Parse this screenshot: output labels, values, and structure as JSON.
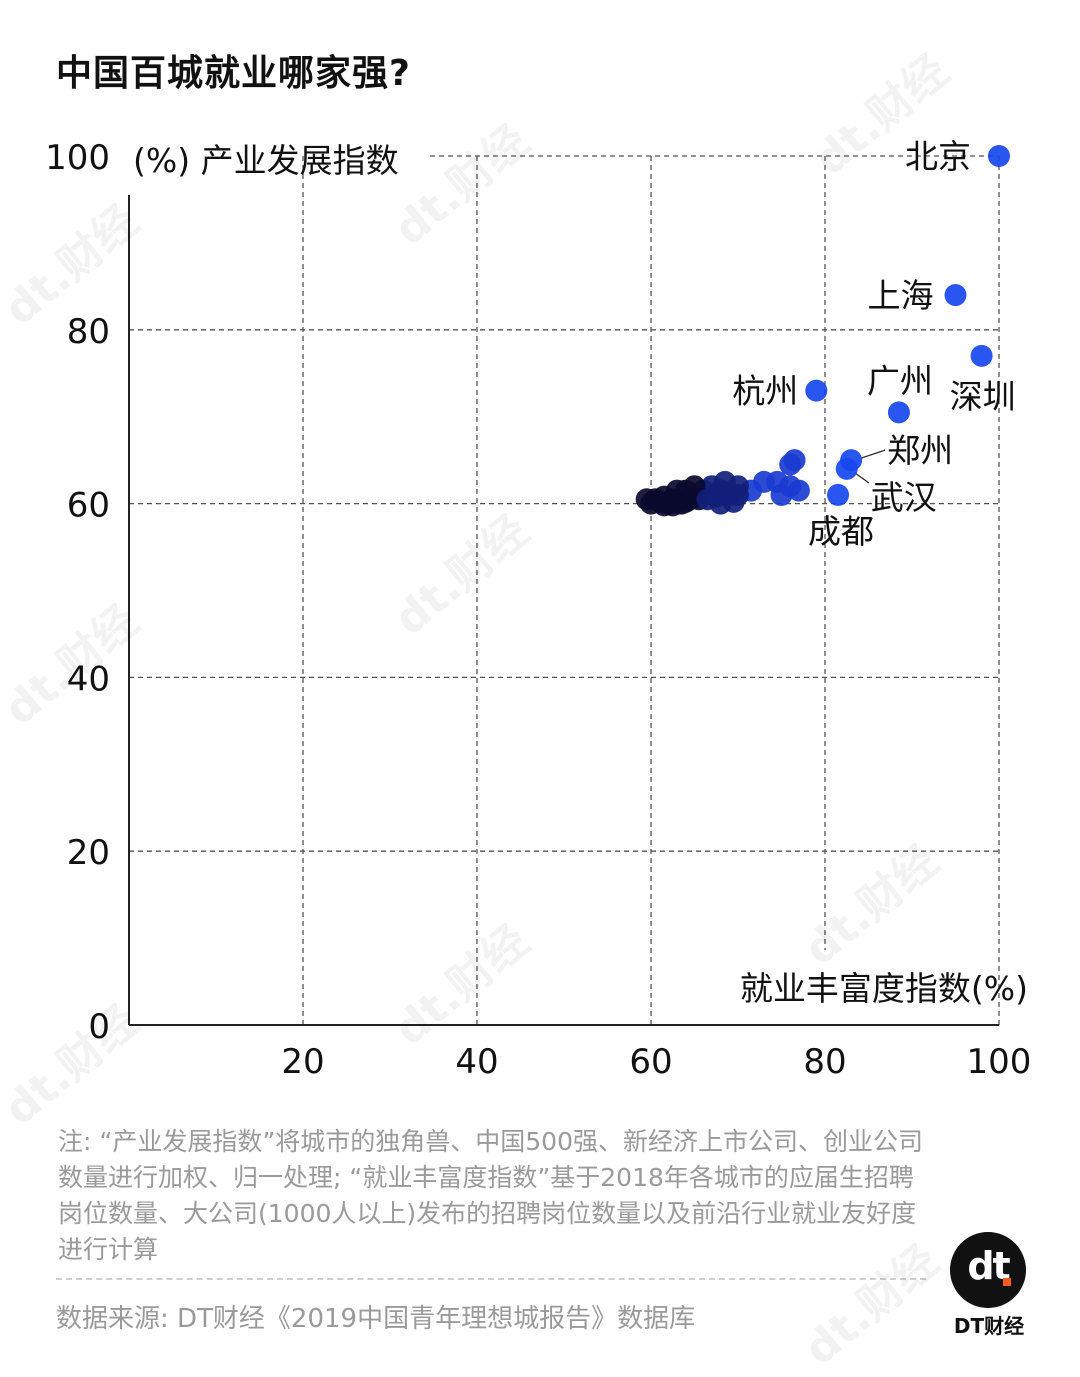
{
  "title": "中国百城就业哪家强?",
  "chart_data": {
    "type": "scatter",
    "title": "中国百城就业哪家强?",
    "xlabel": "就业丰富度指数",
    "xunit": "(%)",
    "ylabel": "产业发展指数",
    "yunit": "(%)",
    "xlim": [
      0,
      100
    ],
    "ylim": [
      0,
      100
    ],
    "xticks": [
      20,
      40,
      60,
      80,
      100
    ],
    "yticks": [
      0,
      20,
      40,
      60,
      80,
      100
    ],
    "grid": true,
    "color": "#1746f0",
    "labeled_points": [
      {
        "name": "北京",
        "x": 100,
        "y": 100
      },
      {
        "name": "上海",
        "x": 95,
        "y": 84
      },
      {
        "name": "深圳",
        "x": 98,
        "y": 77
      },
      {
        "name": "广州",
        "x": 88.5,
        "y": 70.5
      },
      {
        "name": "杭州",
        "x": 79,
        "y": 73
      },
      {
        "name": "郑州",
        "x": 83,
        "y": 65
      },
      {
        "name": "武汉",
        "x": 82.5,
        "y": 64
      },
      {
        "name": "成都",
        "x": 81.5,
        "y": 61
      }
    ],
    "points": [
      {
        "x": 76.5,
        "y": 65
      },
      {
        "x": 76,
        "y": 64.5
      },
      {
        "x": 76,
        "y": 62
      },
      {
        "x": 77,
        "y": 61.5
      },
      {
        "x": 74.5,
        "y": 62.5
      },
      {
        "x": 73,
        "y": 62.5
      },
      {
        "x": 75,
        "y": 61
      },
      {
        "x": 71.5,
        "y": 61.5
      },
      {
        "x": 70,
        "y": 62
      },
      {
        "x": 68.5,
        "y": 62.5
      },
      {
        "x": 69,
        "y": 61
      },
      {
        "x": 68,
        "y": 61.5
      },
      {
        "x": 68,
        "y": 60
      },
      {
        "x": 67,
        "y": 62
      },
      {
        "x": 66,
        "y": 61.5
      },
      {
        "x": 65,
        "y": 62
      },
      {
        "x": 65.5,
        "y": 60.5
      },
      {
        "x": 64,
        "y": 61.5
      },
      {
        "x": 64.5,
        "y": 60.5
      },
      {
        "x": 63.5,
        "y": 60
      },
      {
        "x": 63,
        "y": 61.5
      },
      {
        "x": 62.5,
        "y": 60.5
      },
      {
        "x": 62,
        "y": 60
      },
      {
        "x": 61.5,
        "y": 60.8
      },
      {
        "x": 61,
        "y": 60.2
      },
      {
        "x": 60.5,
        "y": 60.5
      },
      {
        "x": 60,
        "y": 60
      },
      {
        "x": 59.5,
        "y": 60.5
      },
      {
        "x": 61.5,
        "y": 59.8
      },
      {
        "x": 62.5,
        "y": 59.8
      },
      {
        "x": 63,
        "y": 60.4
      },
      {
        "x": 64,
        "y": 60.2
      },
      {
        "x": 66.5,
        "y": 60.5
      },
      {
        "x": 67.5,
        "y": 60.8
      },
      {
        "x": 70,
        "y": 61
      },
      {
        "x": 69.5,
        "y": 60.2
      }
    ],
    "labels": {
      "ylabel_text": "(%) 产业发展指数",
      "xlabel_text": "就业丰富度指数(%)"
    }
  },
  "note": "注: “产业发展指数”将城市的独角兽、中国500强、新经济上市公司、创业公司数量进行加权、归一处理; “就业丰富度指数”基于2018年各城市的应届生招聘岗位数量、大公司(1000人以上)发布的招聘岗位数量以及前沿行业就业友好度进行计算",
  "source": "数据来源: DT财经《2019中国青年理想城报告》数据库",
  "brand": {
    "logo_mark": "dt",
    "name": "DT财经",
    "watermark": "dt.财经",
    "accent": "#ff5a1f"
  }
}
